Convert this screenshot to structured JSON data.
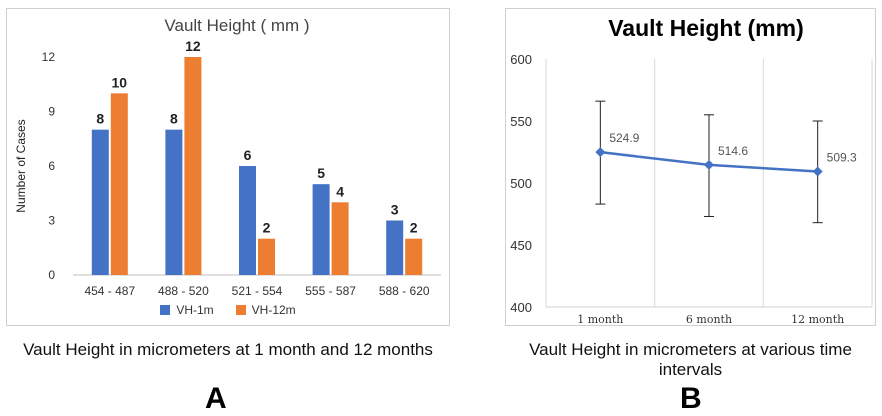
{
  "charts": [
    {
      "type": "bar",
      "title": "Vault Height ( mm )",
      "ylabel": "Number of Cases",
      "xlabel": "",
      "ylim": [
        0,
        12
      ],
      "yticks": [
        0,
        3,
        6,
        9,
        12
      ],
      "grid": false,
      "legend_placement": "bottom",
      "categories": [
        "454 - 487",
        "488 - 520",
        "521 - 554",
        "555 - 587",
        "588 - 620"
      ],
      "series": [
        {
          "name": "VH-1m",
          "color": "#4472C4",
          "values": [
            8,
            8,
            6,
            5,
            3
          ]
        },
        {
          "name": "VH-12m",
          "color": "#ED7D31",
          "values": [
            10,
            12,
            2,
            4,
            2
          ]
        }
      ],
      "caption": "Vault Height in micrometers at 1 month and 12 months",
      "panel_label": "A"
    },
    {
      "type": "line",
      "title": "Vault Height (mm)",
      "ylim": [
        400,
        600
      ],
      "yticks": [
        400,
        450,
        500,
        550,
        600
      ],
      "grid": true,
      "color": "#4472C4",
      "categories": [
        "1 month",
        "6 month",
        "12 month"
      ],
      "values": [
        524.9,
        514.6,
        509.3
      ],
      "error_low": [
        483,
        473,
        468
      ],
      "error_high": [
        566,
        555,
        550
      ],
      "caption": "Vault Height in micrometers at various time intervals",
      "panel_label": "B"
    }
  ]
}
